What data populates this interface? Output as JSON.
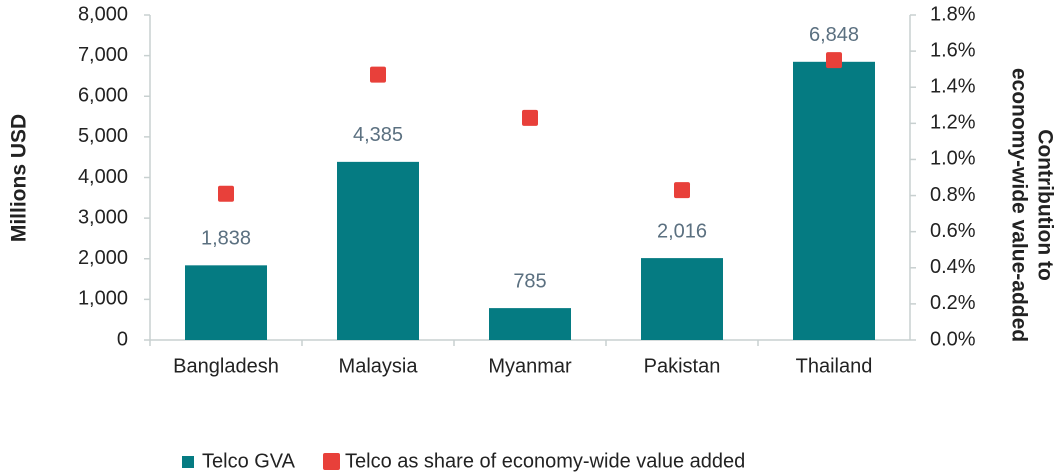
{
  "chart_data": {
    "type": "bar",
    "categories": [
      "Bangladesh",
      "Malaysia",
      "Myanmar",
      "Pakistan",
      "Thailand"
    ],
    "series": [
      {
        "name": "Telco GVA",
        "color": "#057b82",
        "values": [
          1838,
          4385,
          785,
          2016,
          6848
        ],
        "value_labels": [
          "1,838",
          "4,385",
          "785",
          "2,016",
          "6,848"
        ]
      },
      {
        "name": "Telco as share of economy-wide value added",
        "color": "#e8403a",
        "type": "scatter",
        "axis": "y2",
        "values": [
          0.81,
          1.47,
          1.23,
          0.83,
          1.55
        ]
      }
    ],
    "ylabel": "Millions USD",
    "y2label": [
      "Contribution to",
      "economy-wide value-added"
    ],
    "ylim": [
      0,
      8000
    ],
    "yticks": [
      0,
      {
        "value": 1000,
        "label": "1,000"
      },
      {
        "value": 2000,
        "label": "2,000"
      },
      {
        "value": 3000,
        "label": "3,000"
      },
      {
        "value": 4000,
        "label": "4,000"
      },
      {
        "value": 5000,
        "label": "5,000"
      },
      {
        "value": 6000,
        "label": "6,000"
      },
      {
        "value": 7000,
        "label": "7,000"
      },
      {
        "value": 8000,
        "label": "8,000"
      }
    ],
    "y2lim": [
      0,
      1.8
    ],
    "y2ticks": [
      {
        "value": 0,
        "label": "0.0%"
      },
      {
        "value": 0.2,
        "label": "0.2%"
      },
      {
        "value": 0.4,
        "label": "0.4%"
      },
      {
        "value": 0.6,
        "label": "0.6%"
      },
      {
        "value": 0.8,
        "label": "0.8%"
      },
      {
        "value": 1.0,
        "label": "1.0%"
      },
      {
        "value": 1.2,
        "label": "1.2%"
      },
      {
        "value": 1.4,
        "label": "1.4%"
      },
      {
        "value": 1.6,
        "label": "1.6%"
      },
      {
        "value": 1.8,
        "label": "1.8%"
      }
    ],
    "legend": "bottom"
  }
}
